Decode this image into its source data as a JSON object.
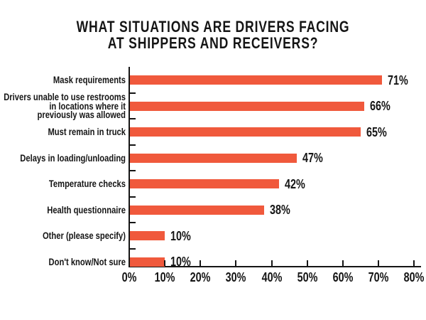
{
  "title": {
    "line1": "WHAT SITUATIONS ARE DRIVERS FACING",
    "line2": "AT SHIPPERS AND RECEIVERS?"
  },
  "colors": {
    "bar": "#F0593C",
    "text": "#151515",
    "axis": "#151515",
    "background": "#FFFFFF"
  },
  "chart_data": {
    "type": "bar",
    "orientation": "horizontal",
    "title": "WHAT SITUATIONS ARE DRIVERS FACING AT SHIPPERS AND RECEIVERS?",
    "categories": [
      "Mask requirements",
      "Drivers unable to use restrooms in locations where it previously was allowed",
      "Must remain in truck",
      "Delays in loading/unloading",
      "Temperature checks",
      "Health questionnaire",
      "Other (please specify)",
      "Don't know/Not sure"
    ],
    "category_label_lines": [
      [
        "Mask requirements"
      ],
      [
        "Drivers unable to use restrooms",
        "in locations where it",
        "previously was allowed"
      ],
      [
        "Must remain in truck"
      ],
      [
        "Delays in loading/unloading"
      ],
      [
        "Temperature checks"
      ],
      [
        "Health questionnaire"
      ],
      [
        "Other (please specify)"
      ],
      [
        "Don't know/Not sure"
      ]
    ],
    "values": [
      71,
      66,
      65,
      47,
      42,
      38,
      10,
      10
    ],
    "value_labels": [
      "71%",
      "66%",
      "65%",
      "47%",
      "42%",
      "38%",
      "10%",
      "10%"
    ],
    "xlabel": "",
    "ylabel": "",
    "xlim": [
      0,
      80
    ],
    "x_tick_step": 10,
    "x_tick_labels": [
      "0%",
      "10%",
      "20%",
      "30%",
      "40%",
      "50%",
      "60%",
      "70%",
      "80%"
    ],
    "grid": false,
    "legend": false,
    "bar_color": "#F0593C"
  }
}
